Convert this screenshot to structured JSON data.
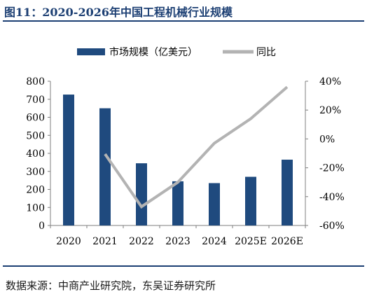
{
  "title": "图11：2020-2026年中国工程机械行业规模",
  "source": "数据来源：中商产业研究院，东吴证券研究所",
  "colors": {
    "bar": "#1f4a7e",
    "line": "#b3b3b3",
    "title": "#1c3f73"
  },
  "chart_data": {
    "type": "bar+line",
    "categories": [
      "2020",
      "2021",
      "2022",
      "2023",
      "2024",
      "2025E",
      "2026E"
    ],
    "series": [
      {
        "name": "市场规模（亿美元）",
        "type": "bar",
        "axis": "left",
        "values": [
          726,
          650,
          345,
          245,
          235,
          270,
          365
        ]
      },
      {
        "name": "同比",
        "type": "line",
        "axis": "right",
        "values": [
          null,
          -10.5,
          -47,
          -30,
          -3,
          14,
          36
        ]
      }
    ],
    "y_left": {
      "min": 0,
      "max": 800,
      "step": 100,
      "tick_labels": [
        "0",
        "100",
        "200",
        "300",
        "400",
        "500",
        "600",
        "700",
        "800"
      ]
    },
    "y_right": {
      "min": -60,
      "max": 40,
      "step": 20,
      "tick_labels": [
        "-60%",
        "-40%",
        "-20%",
        "0%",
        "20%",
        "40%"
      ]
    },
    "legend": {
      "placement": "top",
      "entries": [
        "市场规模（亿美元）",
        "同比"
      ]
    },
    "grid": false
  }
}
